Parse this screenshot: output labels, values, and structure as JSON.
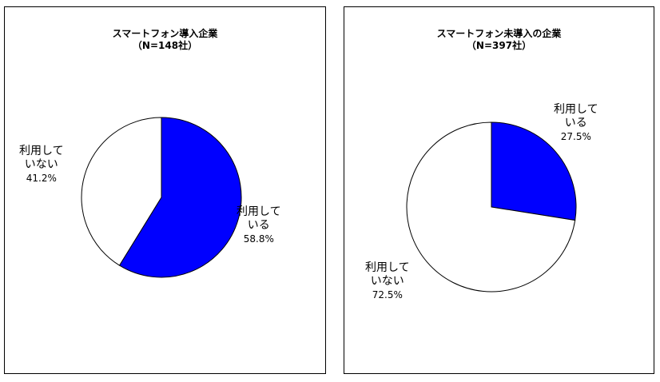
{
  "chart_data": [
    {
      "type": "pie",
      "title": "スマートフォン導入企業",
      "subtitle": "（N=148社）",
      "slices": [
        {
          "label_line1": "利用して",
          "label_line2": "いる",
          "value": 58.8,
          "value_text": "58.8%",
          "color": "#0000FF"
        },
        {
          "label_line1": "利用して",
          "label_line2": "いない",
          "value": 41.2,
          "value_text": "41.2%",
          "color": "#FFFFFF"
        }
      ]
    },
    {
      "type": "pie",
      "title": "スマートフォン未導入の企業",
      "subtitle": "（N=397社）",
      "slices": [
        {
          "label_line1": "利用して",
          "label_line2": "いる",
          "value": 27.5,
          "value_text": "27.5%",
          "color": "#0000FF"
        },
        {
          "label_line1": "利用して",
          "label_line2": "いない",
          "value": 72.5,
          "value_text": "72.5%",
          "color": "#FFFFFF"
        }
      ]
    }
  ]
}
